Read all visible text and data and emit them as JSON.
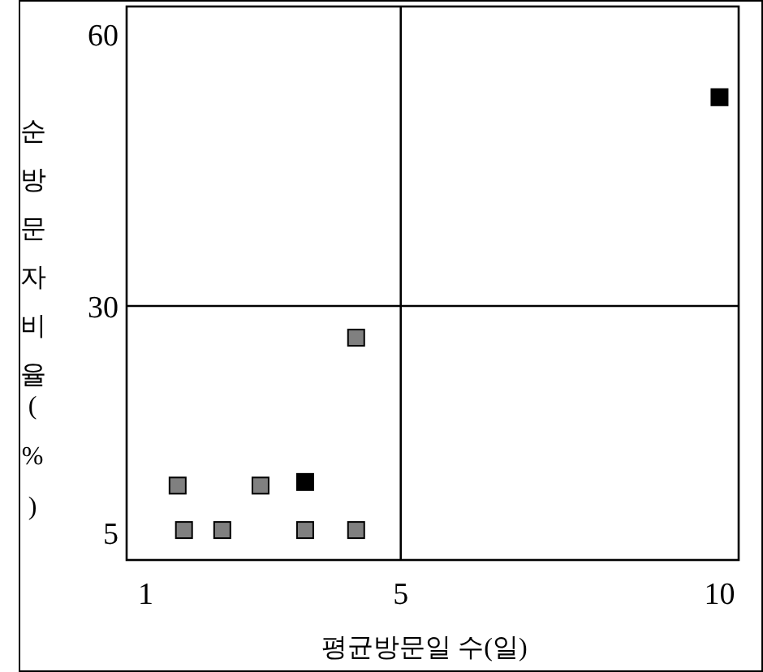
{
  "chart_data": {
    "type": "scatter",
    "xlabel": "평균방문일 수(일)",
    "ylabel": "순방문자비율(%)",
    "x": [
      10,
      4.3,
      1.5,
      2.8,
      3.5,
      1.6,
      2.2,
      3.5,
      4.3
    ],
    "values": [
      53,
      26.5,
      10.2,
      10.2,
      10.6,
      5.3,
      5.3,
      5.3,
      5.3
    ],
    "colors": [
      "#000000",
      "#808080",
      "#808080",
      "#808080",
      "#000000",
      "#808080",
      "#808080",
      "#808080",
      "#808080"
    ],
    "marker": "square",
    "xlim": [
      0.7,
      10.3
    ],
    "ylim": [
      2,
      63
    ],
    "xticks": [
      1,
      5,
      10
    ],
    "yticks": [
      5,
      30,
      60
    ],
    "ref_lines": [
      {
        "axis": "x",
        "value": 5,
        "color": "#000000"
      },
      {
        "axis": "y",
        "value": 30,
        "color": "#000000"
      }
    ]
  }
}
